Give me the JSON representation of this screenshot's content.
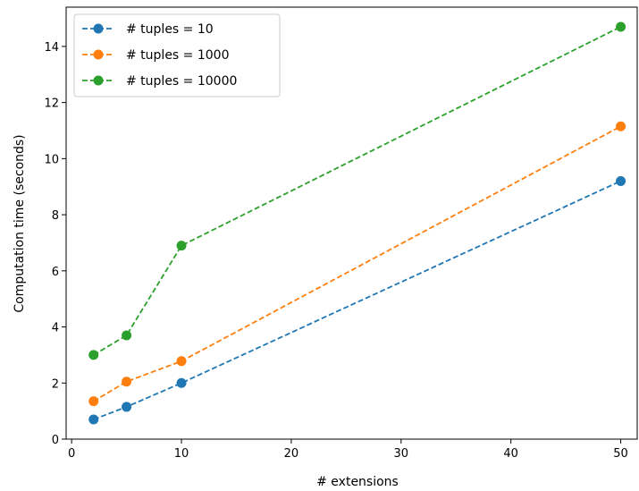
{
  "chart_data": {
    "type": "line",
    "title": "",
    "xlabel": "# extensions",
    "ylabel": "Computation time (seconds)",
    "x": [
      2,
      5,
      10,
      50
    ],
    "xlim": [
      -0.5,
      51.5
    ],
    "ylim": [
      0,
      15.4
    ],
    "xticks": [
      0,
      10,
      20,
      30,
      40,
      50
    ],
    "yticks": [
      0,
      2,
      4,
      6,
      8,
      10,
      12,
      14
    ],
    "grid": false,
    "legend_position": "top-left",
    "line_style": "dashed",
    "marker": "circle",
    "series": [
      {
        "name": "# tuples = 10",
        "color": "#1f77b4",
        "values": [
          0.7,
          1.15,
          2.0,
          9.2
        ]
      },
      {
        "name": "# tuples = 1000",
        "color": "#ff7f0e",
        "values": [
          1.35,
          2.05,
          2.78,
          11.15
        ]
      },
      {
        "name": "# tuples = 10000",
        "color": "#2ca02c",
        "values": [
          3.0,
          3.7,
          6.9,
          14.7
        ]
      }
    ]
  }
}
